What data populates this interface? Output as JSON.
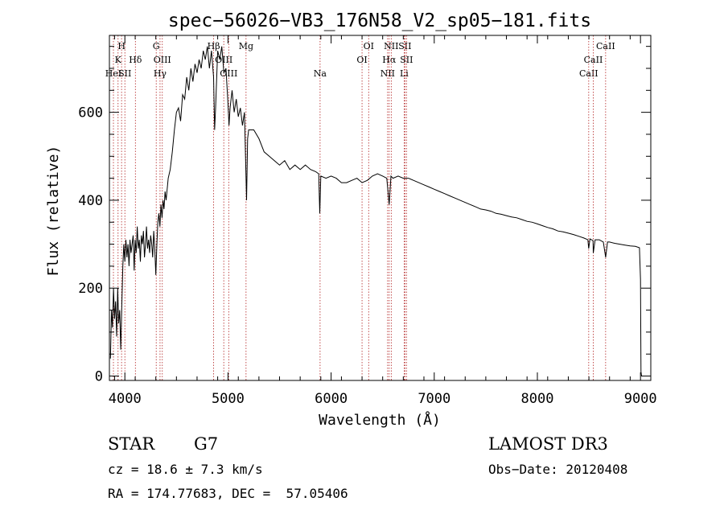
{
  "chart_data": {
    "type": "line",
    "title": "spec−56026−VB3_176N58_V2_sp05−181.fits",
    "xlabel": "Wavelength (Å)",
    "ylabel": "Flux (relative)",
    "xlim": [
      3850,
      9100
    ],
    "ylim": [
      -10,
      775
    ],
    "x_ticks": [
      4000,
      5000,
      6000,
      7000,
      8000,
      9000
    ],
    "y_ticks": [
      0,
      200,
      400,
      600
    ],
    "x_tick_labels": [
      "4000",
      "5000",
      "6000",
      "7000",
      "8000",
      "9000"
    ],
    "y_tick_labels": [
      "0",
      "200",
      "400",
      "600"
    ],
    "series": [
      {
        "name": "flux",
        "color": "#000000",
        "points": [
          [
            3860,
            40
          ],
          [
            3870,
            150
          ],
          [
            3880,
            110
          ],
          [
            3890,
            200
          ],
          [
            3900,
            130
          ],
          [
            3910,
            170
          ],
          [
            3920,
            90
          ],
          [
            3930,
            200
          ],
          [
            3940,
            120
          ],
          [
            3950,
            150
          ],
          [
            3960,
            60
          ],
          [
            3970,
            160
          ],
          [
            3980,
            250
          ],
          [
            3990,
            300
          ],
          [
            4000,
            260
          ],
          [
            4010,
            310
          ],
          [
            4020,
            270
          ],
          [
            4030,
            300
          ],
          [
            4040,
            250
          ],
          [
            4050,
            310
          ],
          [
            4060,
            280
          ],
          [
            4070,
            300
          ],
          [
            4080,
            320
          ],
          [
            4090,
            240
          ],
          [
            4100,
            310
          ],
          [
            4110,
            280
          ],
          [
            4120,
            340
          ],
          [
            4130,
            290
          ],
          [
            4140,
            310
          ],
          [
            4150,
            260
          ],
          [
            4160,
            320
          ],
          [
            4170,
            300
          ],
          [
            4180,
            330
          ],
          [
            4190,
            270
          ],
          [
            4200,
            300
          ],
          [
            4210,
            340
          ],
          [
            4220,
            290
          ],
          [
            4230,
            310
          ],
          [
            4240,
            280
          ],
          [
            4250,
            320
          ],
          [
            4260,
            300
          ],
          [
            4270,
            270
          ],
          [
            4280,
            330
          ],
          [
            4290,
            290
          ],
          [
            4300,
            230
          ],
          [
            4310,
            300
          ],
          [
            4320,
            350
          ],
          [
            4330,
            370
          ],
          [
            4340,
            340
          ],
          [
            4350,
            390
          ],
          [
            4360,
            360
          ],
          [
            4370,
            400
          ],
          [
            4380,
            380
          ],
          [
            4390,
            420
          ],
          [
            4400,
            400
          ],
          [
            4420,
            450
          ],
          [
            4440,
            470
          ],
          [
            4460,
            510
          ],
          [
            4480,
            560
          ],
          [
            4500,
            600
          ],
          [
            4520,
            610
          ],
          [
            4540,
            580
          ],
          [
            4560,
            640
          ],
          [
            4580,
            630
          ],
          [
            4600,
            680
          ],
          [
            4620,
            650
          ],
          [
            4640,
            700
          ],
          [
            4660,
            670
          ],
          [
            4680,
            710
          ],
          [
            4700,
            690
          ],
          [
            4720,
            720
          ],
          [
            4740,
            700
          ],
          [
            4760,
            740
          ],
          [
            4780,
            720
          ],
          [
            4800,
            750
          ],
          [
            4820,
            700
          ],
          [
            4840,
            740
          ],
          [
            4860,
            680
          ],
          [
            4870,
            560
          ],
          [
            4880,
            610
          ],
          [
            4900,
            740
          ],
          [
            4920,
            720
          ],
          [
            4940,
            750
          ],
          [
            4960,
            690
          ],
          [
            4980,
            700
          ],
          [
            5000,
            620
          ],
          [
            5010,
            570
          ],
          [
            5020,
            610
          ],
          [
            5040,
            650
          ],
          [
            5060,
            600
          ],
          [
            5080,
            630
          ],
          [
            5100,
            590
          ],
          [
            5120,
            610
          ],
          [
            5140,
            570
          ],
          [
            5160,
            600
          ],
          [
            5170,
            500
          ],
          [
            5180,
            400
          ],
          [
            5190,
            540
          ],
          [
            5200,
            560
          ],
          [
            5250,
            560
          ],
          [
            5300,
            540
          ],
          [
            5350,
            510
          ],
          [
            5400,
            500
          ],
          [
            5450,
            490
          ],
          [
            5500,
            480
          ],
          [
            5550,
            490
          ],
          [
            5600,
            470
          ],
          [
            5650,
            480
          ],
          [
            5700,
            470
          ],
          [
            5750,
            480
          ],
          [
            5800,
            470
          ],
          [
            5850,
            465
          ],
          [
            5880,
            460
          ],
          [
            5890,
            370
          ],
          [
            5895,
            410
          ],
          [
            5900,
            455
          ],
          [
            5950,
            450
          ],
          [
            6000,
            455
          ],
          [
            6050,
            450
          ],
          [
            6100,
            440
          ],
          [
            6150,
            440
          ],
          [
            6200,
            445
          ],
          [
            6250,
            450
          ],
          [
            6300,
            440
          ],
          [
            6350,
            445
          ],
          [
            6400,
            455
          ],
          [
            6450,
            460
          ],
          [
            6500,
            455
          ],
          [
            6540,
            450
          ],
          [
            6563,
            390
          ],
          [
            6580,
            455
          ],
          [
            6600,
            450
          ],
          [
            6650,
            455
          ],
          [
            6700,
            450
          ],
          [
            6750,
            450
          ],
          [
            6800,
            445
          ],
          [
            6850,
            440
          ],
          [
            6900,
            435
          ],
          [
            6950,
            430
          ],
          [
            7000,
            425
          ],
          [
            7050,
            420
          ],
          [
            7100,
            415
          ],
          [
            7150,
            410
          ],
          [
            7200,
            405
          ],
          [
            7250,
            400
          ],
          [
            7300,
            395
          ],
          [
            7350,
            390
          ],
          [
            7400,
            385
          ],
          [
            7450,
            380
          ],
          [
            7500,
            378
          ],
          [
            7550,
            375
          ],
          [
            7600,
            370
          ],
          [
            7650,
            368
          ],
          [
            7700,
            365
          ],
          [
            7750,
            362
          ],
          [
            7800,
            360
          ],
          [
            7850,
            356
          ],
          [
            7900,
            352
          ],
          [
            7950,
            350
          ],
          [
            8000,
            346
          ],
          [
            8050,
            342
          ],
          [
            8100,
            338
          ],
          [
            8150,
            335
          ],
          [
            8200,
            330
          ],
          [
            8250,
            328
          ],
          [
            8300,
            325
          ],
          [
            8350,
            322
          ],
          [
            8400,
            318
          ],
          [
            8450,
            314
          ],
          [
            8490,
            310
          ],
          [
            8498,
            290
          ],
          [
            8510,
            312
          ],
          [
            8540,
            308
          ],
          [
            8542,
            280
          ],
          [
            8560,
            310
          ],
          [
            8600,
            310
          ],
          [
            8640,
            305
          ],
          [
            8662,
            270
          ],
          [
            8680,
            305
          ],
          [
            8700,
            305
          ],
          [
            8750,
            302
          ],
          [
            8800,
            300
          ],
          [
            8850,
            298
          ],
          [
            8900,
            296
          ],
          [
            8950,
            295
          ],
          [
            8990,
            292
          ],
          [
            9000,
            220
          ],
          [
            9005,
            10
          ],
          [
            9010,
            0
          ]
        ]
      }
    ],
    "line_markers": [
      {
        "wavelength": 3889,
        "label": "HeI",
        "row": 2
      },
      {
        "wavelength": 3934,
        "label": "K",
        "row": 1
      },
      {
        "wavelength": 3968,
        "label": "H",
        "row": 0
      },
      {
        "wavelength": 4000,
        "label": "SII",
        "row": 2
      },
      {
        "wavelength": 4102,
        "label": "Hδ",
        "row": 1
      },
      {
        "wavelength": 4304,
        "label": "G",
        "row": 0
      },
      {
        "wavelength": 4341,
        "label": "Hγ",
        "row": 2
      },
      {
        "wavelength": 4363,
        "label": "OIII",
        "row": 1
      },
      {
        "wavelength": 4861,
        "label": "Hβ",
        "row": 0
      },
      {
        "wavelength": 4959,
        "label": "OIII",
        "row": 1
      },
      {
        "wavelength": 5007,
        "label": "OIII",
        "row": 2
      },
      {
        "wavelength": 5175,
        "label": "Mg",
        "row": 0
      },
      {
        "wavelength": 5893,
        "label": "Na",
        "row": 2
      },
      {
        "wavelength": 6300,
        "label": "OI",
        "row": 1
      },
      {
        "wavelength": 6364,
        "label": "OI",
        "row": 0
      },
      {
        "wavelength": 6548,
        "label": "NII",
        "row": 2
      },
      {
        "wavelength": 6563,
        "label": "Hα",
        "row": 1
      },
      {
        "wavelength": 6583,
        "label": "NII",
        "row": 0
      },
      {
        "wavelength": 6708,
        "label": "Li",
        "row": 2
      },
      {
        "wavelength": 6716,
        "label": "SII",
        "row": 0
      },
      {
        "wavelength": 6731,
        "label": "SII",
        "row": 1
      },
      {
        "wavelength": 8498,
        "label": "CaII",
        "row": 2
      },
      {
        "wavelength": 8542,
        "label": "CaII",
        "row": 1
      },
      {
        "wavelength": 8662,
        "label": "CaII",
        "row": 0
      }
    ],
    "marker_color": "#b22222"
  },
  "info": {
    "object_class": "STAR",
    "subclass": "G7",
    "survey": "LAMOST DR3",
    "redshift": "cz = 18.6 ± 7.3 km/s",
    "obs_date": "Obs−Date: 20120408",
    "coordinates": "RA = 174.77683, DEC =  57.05406"
  }
}
